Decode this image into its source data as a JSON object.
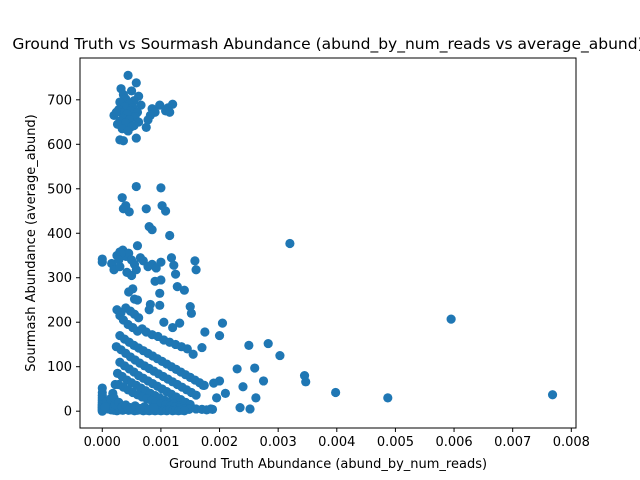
{
  "chart_data": {
    "type": "scatter",
    "title": "Ground Truth vs Sourmash Abundance (abund_by_num_reads vs average_abund)",
    "xlabel": "Ground Truth Abundance (abund_by_num_reads)",
    "ylabel": "Sourmash Abundance (average_abund)",
    "xlim": [
      -0.00038,
      0.00808
    ],
    "ylim": [
      -37.8,
      794
    ],
    "xticks": [
      0.0,
      0.001,
      0.002,
      0.003,
      0.004,
      0.005,
      0.006,
      0.007,
      0.008
    ],
    "xtick_labels": [
      "0.000",
      "0.001",
      "0.002",
      "0.003",
      "0.004",
      "0.005",
      "0.006",
      "0.007",
      "0.008"
    ],
    "yticks": [
      0,
      100,
      200,
      300,
      400,
      500,
      600,
      700
    ],
    "ytick_labels": [
      "0",
      "100",
      "200",
      "300",
      "400",
      "500",
      "600",
      "700"
    ],
    "grid": false,
    "marker_color": "#1f77b4",
    "points": [
      [
        0.00044,
        755
      ],
      [
        0.00058,
        738
      ],
      [
        0.00032,
        725
      ],
      [
        0.0005,
        720
      ],
      [
        0.00036,
        712
      ],
      [
        0.00062,
        708
      ],
      [
        0.0004,
        702
      ],
      [
        0.00054,
        698
      ],
      [
        0.0003,
        695
      ],
      [
        0.00046,
        690
      ],
      [
        0.00066,
        688
      ],
      [
        0.00038,
        685
      ],
      [
        0.00052,
        682
      ],
      [
        0.00028,
        678
      ],
      [
        0.00048,
        675
      ],
      [
        0.0006,
        672
      ],
      [
        0.00034,
        670
      ],
      [
        0.00042,
        668
      ],
      [
        0.0002,
        665
      ],
      [
        0.00024,
        672
      ],
      [
        0.00056,
        662
      ],
      [
        0.00036,
        658
      ],
      [
        0.00046,
        655
      ],
      [
        0.0003,
        652
      ],
      [
        0.00062,
        650
      ],
      [
        0.0004,
        648
      ],
      [
        0.00026,
        645
      ],
      [
        0.0005,
        640
      ],
      [
        0.00034,
        635
      ],
      [
        0.00044,
        630
      ],
      [
        0.0003,
        610
      ],
      [
        0.00036,
        608
      ],
      [
        0.00058,
        614
      ],
      [
        0.00054,
        642
      ],
      [
        0.00098,
        688
      ],
      [
        0.00112,
        682
      ],
      [
        0.0012,
        690
      ],
      [
        0.00085,
        680
      ],
      [
        0.0009,
        672
      ],
      [
        0.00082,
        665
      ],
      [
        0.00078,
        655
      ],
      [
        0.00075,
        638
      ],
      [
        0.00108,
        675
      ],
      [
        0.00115,
        672
      ],
      [
        0.00034,
        480
      ],
      [
        0.0004,
        462
      ],
      [
        0.00046,
        448
      ],
      [
        0.00036,
        455
      ],
      [
        0.00058,
        505
      ],
      [
        0.001,
        502
      ],
      [
        0.00075,
        455
      ],
      [
        0.00102,
        462
      ],
      [
        0.00108,
        450
      ],
      [
        0.0008,
        415
      ],
      [
        0.00085,
        408
      ],
      [
        0.00115,
        395
      ],
      [
        0.0,
        342
      ],
      [
        0.0,
        335
      ],
      [
        0.00016,
        332
      ],
      [
        0.0002,
        318
      ],
      [
        0.00025,
        350
      ],
      [
        0.0003,
        358
      ],
      [
        0.00035,
        362
      ],
      [
        0.0004,
        348
      ],
      [
        0.00045,
        355
      ],
      [
        0.0005,
        340
      ],
      [
        0.00055,
        330
      ],
      [
        0.0006,
        372
      ],
      [
        0.00065,
        345
      ],
      [
        0.0003,
        325
      ],
      [
        0.00042,
        312
      ],
      [
        0.0005,
        305
      ],
      [
        0.00058,
        318
      ],
      [
        0.0007,
        338
      ],
      [
        0.00078,
        325
      ],
      [
        0.00085,
        330
      ],
      [
        0.00092,
        322
      ],
      [
        0.001,
        335
      ],
      [
        0.00118,
        345
      ],
      [
        0.00122,
        328
      ],
      [
        0.00125,
        308
      ],
      [
        0.00128,
        280
      ],
      [
        0.0014,
        272
      ],
      [
        0.00158,
        338
      ],
      [
        0.0016,
        318
      ],
      [
        0.0009,
        292
      ],
      [
        0.001,
        295
      ],
      [
        0.00098,
        265
      ],
      [
        0.00052,
        275
      ],
      [
        0.00045,
        268
      ],
      [
        0.00055,
        252
      ],
      [
        0.0006,
        250
      ],
      [
        0.00032,
        355
      ],
      [
        0.00028,
        340
      ],
      [
        0.0032,
        377
      ],
      [
        0.00595,
        207
      ],
      [
        0.00283,
        152
      ],
      [
        0.00303,
        125
      ],
      [
        0.0025,
        148
      ],
      [
        0.0026,
        97
      ],
      [
        0.00345,
        80
      ],
      [
        0.00347,
        66
      ],
      [
        0.00398,
        42
      ],
      [
        0.00487,
        30
      ],
      [
        0.00768,
        37
      ],
      [
        0.00275,
        68
      ],
      [
        0.00262,
        30
      ],
      [
        0.0024,
        55
      ],
      [
        0.00235,
        8
      ],
      [
        0.00252,
        5
      ],
      [
        0.0023,
        95
      ],
      [
        0.0021,
        40
      ],
      [
        0.002,
        68
      ],
      [
        0.00195,
        30
      ],
      [
        0.0019,
        63
      ],
      [
        0.00185,
        5
      ],
      [
        0.00172,
        58
      ],
      [
        0.00205,
        198
      ],
      [
        0.002,
        170
      ],
      [
        0.00175,
        178
      ],
      [
        0.0017,
        143
      ],
      [
        0.0015,
        235
      ],
      [
        0.00152,
        220
      ],
      [
        0.00132,
        198
      ],
      [
        0.0012,
        188
      ],
      [
        0.00105,
        200
      ],
      [
        0.00098,
        238
      ],
      [
        0.00082,
        240
      ],
      [
        0.0008,
        228
      ],
      [
        0.00062,
        210
      ],
      [
        0.00055,
        218
      ],
      [
        0.00048,
        225
      ],
      [
        0.0004,
        232
      ],
      [
        0.00032,
        222
      ],
      [
        0.00025,
        228
      ],
      [
        0.0003,
        215
      ],
      [
        0.00036,
        205
      ],
      [
        0.00044,
        195
      ],
      [
        0.00052,
        188
      ],
      [
        0.0006,
        180
      ],
      [
        0.00068,
        185
      ],
      [
        0.00075,
        178
      ],
      [
        0.00085,
        172
      ],
      [
        0.00095,
        168
      ],
      [
        0.00105,
        160
      ],
      [
        0.00115,
        155
      ],
      [
        0.00125,
        150
      ],
      [
        0.00135,
        145
      ],
      [
        0.00145,
        140
      ],
      [
        0.00155,
        128
      ],
      [
        0.0003,
        170
      ],
      [
        0.00038,
        162
      ],
      [
        0.00046,
        155
      ],
      [
        0.00054,
        148
      ],
      [
        0.00062,
        142
      ],
      [
        0.0007,
        136
      ],
      [
        0.00078,
        130
      ],
      [
        0.00086,
        124
      ],
      [
        0.00094,
        118
      ],
      [
        0.00102,
        112
      ],
      [
        0.0011,
        106
      ],
      [
        0.00118,
        100
      ],
      [
        0.00126,
        94
      ],
      [
        0.00134,
        88
      ],
      [
        0.00142,
        82
      ],
      [
        0.0015,
        76
      ],
      [
        0.00158,
        70
      ],
      [
        0.00166,
        64
      ],
      [
        0.00174,
        58
      ],
      [
        0.00024,
        145
      ],
      [
        0.00032,
        138
      ],
      [
        0.0004,
        130
      ],
      [
        0.00048,
        122
      ],
      [
        0.00056,
        115
      ],
      [
        0.00064,
        108
      ],
      [
        0.00072,
        102
      ],
      [
        0.0008,
        96
      ],
      [
        0.00088,
        90
      ],
      [
        0.00096,
        84
      ],
      [
        0.00104,
        78
      ],
      [
        0.00112,
        72
      ],
      [
        0.0012,
        66
      ],
      [
        0.00128,
        60
      ],
      [
        0.00136,
        54
      ],
      [
        0.00144,
        48
      ],
      [
        0.00152,
        42
      ],
      [
        0.0016,
        36
      ],
      [
        0.0003,
        110
      ],
      [
        0.00038,
        102
      ],
      [
        0.00046,
        95
      ],
      [
        0.00054,
        88
      ],
      [
        0.00062,
        80
      ],
      [
        0.0007,
        74
      ],
      [
        0.00078,
        68
      ],
      [
        0.00086,
        62
      ],
      [
        0.00094,
        56
      ],
      [
        0.00102,
        50
      ],
      [
        0.0011,
        44
      ],
      [
        0.00118,
        38
      ],
      [
        0.00126,
        32
      ],
      [
        0.00134,
        26
      ],
      [
        0.00142,
        20
      ],
      [
        0.0015,
        15
      ],
      [
        0.00026,
        85
      ],
      [
        0.00034,
        78
      ],
      [
        0.00042,
        70
      ],
      [
        0.0005,
        64
      ],
      [
        0.00058,
        58
      ],
      [
        0.00066,
        52
      ],
      [
        0.00074,
        46
      ],
      [
        0.00082,
        40
      ],
      [
        0.0009,
        35
      ],
      [
        0.00098,
        30
      ],
      [
        0.00106,
        25
      ],
      [
        0.00114,
        20
      ],
      [
        0.00122,
        16
      ],
      [
        0.0013,
        12
      ],
      [
        0.00138,
        9
      ],
      [
        0.00146,
        6
      ],
      [
        0.00028,
        60
      ],
      [
        0.00036,
        54
      ],
      [
        0.00044,
        48
      ],
      [
        0.00052,
        42
      ],
      [
        0.0006,
        37
      ],
      [
        0.00068,
        32
      ],
      [
        0.00076,
        28
      ],
      [
        0.00084,
        24
      ],
      [
        0.00092,
        20
      ],
      [
        0.001,
        17
      ],
      [
        0.00108,
        14
      ],
      [
        0.00116,
        11
      ],
      [
        0.00124,
        9
      ],
      [
        0.00132,
        7
      ],
      [
        0.0014,
        5
      ],
      [
        0.00148,
        4
      ],
      [
        0.0016,
        5
      ],
      [
        0.0017,
        4
      ],
      [
        0.00178,
        3
      ],
      [
        0.00188,
        4
      ],
      [
        0.0,
        52
      ],
      [
        0.0,
        42
      ],
      [
        0.0,
        35
      ],
      [
        0.0,
        30
      ],
      [
        0.0,
        25
      ],
      [
        0.0,
        20
      ],
      [
        0.0,
        16
      ],
      [
        0.0,
        12
      ],
      [
        0.0,
        9
      ],
      [
        0.0,
        6
      ],
      [
        0.0,
        4
      ],
      [
        0.0,
        2
      ],
      [
        0.0,
        0
      ],
      [
        0.0,
        8
      ],
      [
        0.0,
        14
      ],
      [
        0.0001,
        5
      ],
      [
        0.00015,
        3
      ],
      [
        0.0002,
        2
      ],
      [
        0.00025,
        1
      ],
      [
        0.0003,
        3
      ],
      [
        0.00035,
        2
      ],
      [
        0.0004,
        4
      ],
      [
        0.00045,
        2
      ],
      [
        0.0005,
        3
      ],
      [
        0.00055,
        1
      ],
      [
        0.0006,
        2
      ],
      [
        0.00065,
        3
      ],
      [
        0.0007,
        1
      ],
      [
        0.00075,
        2
      ],
      [
        0.0008,
        1
      ],
      [
        0.00085,
        2
      ],
      [
        0.0009,
        1
      ],
      [
        0.00095,
        2
      ],
      [
        0.001,
        1
      ],
      [
        0.00105,
        2
      ],
      [
        0.0011,
        1
      ],
      [
        0.00115,
        3
      ],
      [
        0.0012,
        1
      ],
      [
        0.00125,
        2
      ],
      [
        0.0013,
        1
      ],
      [
        0.00135,
        2
      ],
      [
        0.0014,
        1
      ],
      [
        0.00012,
        18
      ],
      [
        0.00018,
        12
      ],
      [
        8e-05,
        22
      ],
      [
        5e-05,
        10
      ],
      [
        0.00014,
        28
      ],
      [
        0.00022,
        15
      ],
      [
        0.00018,
        40
      ],
      [
        0.00022,
        60
      ],
      [
        0.0002,
        30
      ],
      [
        0.00028,
        20
      ],
      [
        0.00034,
        10
      ],
      [
        0.0004,
        14
      ],
      [
        0.00048,
        8
      ],
      [
        0.00056,
        12
      ],
      [
        0.00064,
        6
      ],
      [
        0.00072,
        10
      ],
      [
        0.0008,
        5
      ],
      [
        0.00088,
        8
      ]
    ]
  }
}
